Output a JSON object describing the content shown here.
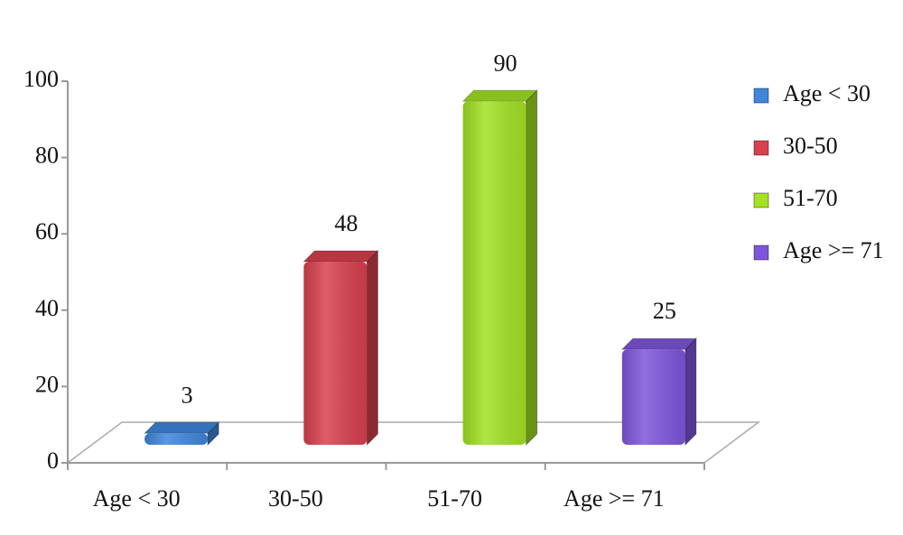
{
  "chart_data": {
    "type": "bar3d",
    "categories": [
      "Age < 30",
      "30-50",
      "51-70",
      "Age >= 71"
    ],
    "values": [
      3,
      48,
      90,
      25
    ],
    "colors": [
      "#3f86dc",
      "#d8404e",
      "#a2e223",
      "#7e56dc"
    ],
    "ylim": [
      0,
      100
    ],
    "yticks": [
      0,
      20,
      40,
      60,
      80,
      100
    ],
    "legend": "right"
  }
}
